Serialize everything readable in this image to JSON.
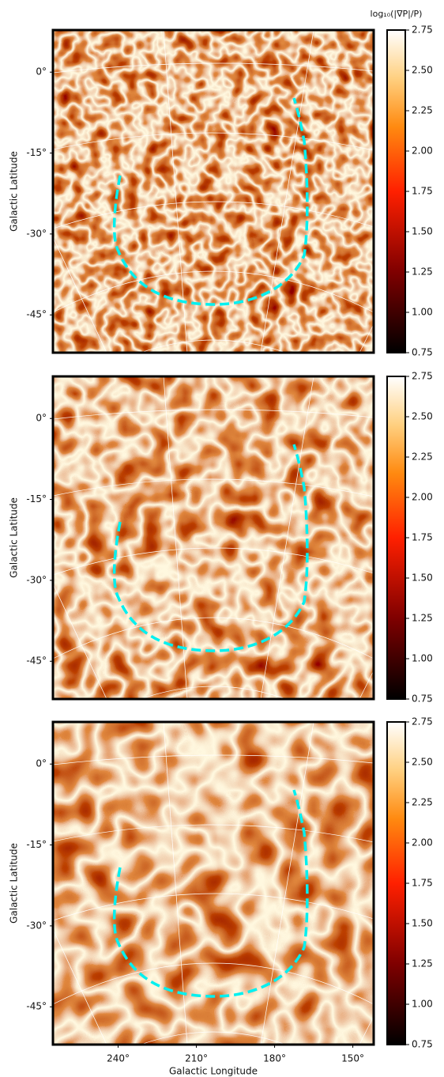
{
  "chart_data": [
    {
      "type": "map",
      "ylabel": "Galactic Latitude",
      "ylim": [
        -52,
        7.8
      ],
      "yticks": [
        {
          "value": 0,
          "label": "0°"
        },
        {
          "value": -15,
          "label": "-15°"
        },
        {
          "value": -30,
          "label": "-30°"
        },
        {
          "value": -45,
          "label": "-45°"
        }
      ],
      "xlim": [
        265,
        142
      ],
      "colorbar": {
        "label": "log₁₀(|∇P|/P)",
        "colormap": "afmhot",
        "clim": [
          0.75,
          2.75
        ],
        "ticks": [
          0.75,
          {
            "value": 1,
            "label": "1.00"
          },
          1.25,
          {
            "value": 1.5,
            "label": "1.50"
          },
          1.75,
          {
            "value": 2,
            "label": "2.00"
          },
          2.25,
          {
            "value": 2.5,
            "label": "2.50"
          },
          2.75
        ]
      }
    },
    {
      "type": "map",
      "ylabel": "Galactic Latitude",
      "ylim": [
        -52,
        7.8
      ],
      "yticks": [
        {
          "value": 0,
          "label": "0°"
        },
        {
          "value": -15,
          "label": "-15°"
        },
        {
          "value": -30,
          "label": "-30°"
        },
        {
          "value": -45,
          "label": "-45°"
        }
      ],
      "xlim": [
        265,
        142
      ],
      "colorbar": {
        "colormap": "afmhot",
        "clim": [
          0.75,
          2.75
        ],
        "ticks": [
          0.75,
          {
            "value": 1,
            "label": "1.00"
          },
          1.25,
          {
            "value": 1.5,
            "label": "1.50"
          },
          1.75,
          {
            "value": 2,
            "label": "2.00"
          },
          2.25,
          {
            "value": 2.5,
            "label": "2.50"
          },
          2.75
        ]
      }
    },
    {
      "type": "map",
      "ylabel": "Galactic Latitude",
      "xlabel": "Galactic Longitude",
      "ylim": [
        -52,
        7.8
      ],
      "yticks": [
        {
          "value": 0,
          "label": "0°"
        },
        {
          "value": -15,
          "label": "-15°"
        },
        {
          "value": -30,
          "label": "-30°"
        },
        {
          "value": -45,
          "label": "-45°"
        }
      ],
      "xlim": [
        265,
        142
      ],
      "xticks": [
        {
          "value": 240,
          "label": "240°"
        },
        {
          "value": 210,
          "label": "210°"
        },
        {
          "value": 180,
          "label": "180°"
        },
        {
          "value": 150,
          "label": "150°"
        }
      ],
      "colorbar": {
        "colormap": "afmhot",
        "clim": [
          0.75,
          2.75
        ],
        "ticks": [
          0.75,
          {
            "value": 1,
            "label": "1.00"
          },
          1.25,
          {
            "value": 1.5,
            "label": "1.50"
          },
          1.75,
          {
            "value": 2,
            "label": "2.00"
          },
          2.25,
          {
            "value": 2.5,
            "label": "2.50"
          },
          2.75
        ]
      }
    }
  ]
}
